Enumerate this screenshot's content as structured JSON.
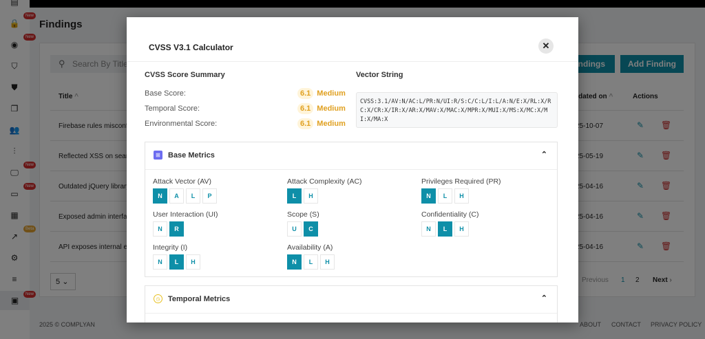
{
  "sidebar": {
    "items": [
      {
        "icon": "dashboard-icon"
      },
      {
        "icon": "lock-icon",
        "badge": "New"
      },
      {
        "icon": "eye-icon",
        "badge": "New"
      },
      {
        "icon": "shield-search-icon"
      },
      {
        "icon": "shield-icon"
      },
      {
        "icon": "documents-icon"
      },
      {
        "icon": "users-icon"
      },
      {
        "icon": "sliders-icon"
      },
      {
        "icon": "monitor-icon",
        "badge": "New"
      },
      {
        "icon": "screens-icon",
        "badge": "New"
      },
      {
        "icon": "calendar-icon"
      },
      {
        "icon": "trend-icon",
        "badge": "Beta"
      },
      {
        "icon": "gear-icon"
      },
      {
        "icon": "sort-icon"
      },
      {
        "icon": "report-search-icon",
        "badge": "New",
        "active": true
      }
    ]
  },
  "page": {
    "title": "Findings",
    "search_placeholder": "Search By Title",
    "export_label": "Findings",
    "add_label": "Add Finding",
    "columns": {
      "title": "Title",
      "updated": "dated on",
      "actions": "Actions"
    },
    "rows": [
      {
        "title": "Firebase rules misconf",
        "date": "25-10-07"
      },
      {
        "title": "Reflected XSS on searc",
        "date": "25-05-19"
      },
      {
        "title": "Outdated jQuery library",
        "date": "25-04-16"
      },
      {
        "title": "Exposed admin interfac",
        "date": "25-04-16"
      },
      {
        "title": "API exposes internal er",
        "date": "25-04-16"
      }
    ],
    "page_size": "5",
    "pager": {
      "previous": "Previous",
      "pages": [
        "1",
        "2"
      ],
      "current": "1",
      "next": "Next"
    }
  },
  "footer": {
    "copyright": "2025 © COMPLYAN",
    "links": [
      "ABOUT",
      "CONTACT",
      "PRIVACY POLICY"
    ]
  },
  "modal": {
    "title": "CVSS V3.1 Calculator",
    "summary_title": "CVSS Score Summary",
    "vector_title": "Vector String",
    "scores": [
      {
        "label": "Base Score:",
        "value": "6.1",
        "severity": "Medium"
      },
      {
        "label": "Temporal Score:",
        "value": "6.1",
        "severity": "Medium"
      },
      {
        "label": "Environmental Score:",
        "value": "6.1",
        "severity": "Medium"
      }
    ],
    "vector": "CVSS:3.1/AV:N/AC:L/PR:N/UI:R/S:C/C:L/I:L/A:N/E:X/RL:X/RC:X/CR:X/IR:X/AR:X/MAV:X/MAC:X/MPR:X/MUI:X/MS:X/MC:X/MI:X/MA:X",
    "base_metrics": {
      "title": "Base Metrics",
      "metrics": [
        {
          "label": "Attack Vector (AV)",
          "options": [
            "N",
            "A",
            "L",
            "P"
          ],
          "selected": "N"
        },
        {
          "label": "Attack Complexity (AC)",
          "options": [
            "L",
            "H"
          ],
          "selected": "L"
        },
        {
          "label": "Privileges Required (PR)",
          "options": [
            "N",
            "L",
            "H"
          ],
          "selected": "N"
        },
        {
          "label": "User Interaction (UI)",
          "options": [
            "N",
            "R"
          ],
          "selected": "R"
        },
        {
          "label": "Scope (S)",
          "options": [
            "U",
            "C"
          ],
          "selected": "C"
        },
        {
          "label": "Confidentiality (C)",
          "options": [
            "N",
            "L",
            "H"
          ],
          "selected": "L"
        },
        {
          "label": "Integrity (I)",
          "options": [
            "N",
            "L",
            "H"
          ],
          "selected": "L"
        },
        {
          "label": "Availability (A)",
          "options": [
            "N",
            "L",
            "H"
          ],
          "selected": "N"
        }
      ]
    },
    "temporal_metrics": {
      "title": "Temporal Metrics"
    }
  },
  "colors": {
    "accent": "#0e8fa8",
    "medium": "#e0a020",
    "delete": "#c62828"
  }
}
